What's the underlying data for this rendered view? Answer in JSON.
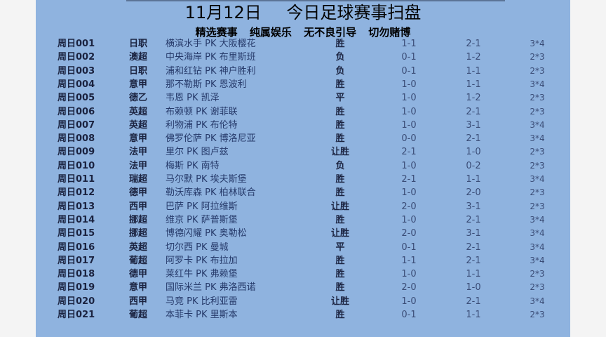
{
  "title": "11月12日 今日足球赛事扫盘",
  "slogan": "精选赛事 纯属娱乐 无不良引导 切勿赌博",
  "matches": [
    {
      "id": "周日001",
      "league": "日职",
      "match": "横滨水手 PK 大阪樱花",
      "result": "胜",
      "score1": "1-1",
      "score2": "2-1",
      "goals": "3*4"
    },
    {
      "id": "周日002",
      "league": "澳超",
      "match": "中央海岸 PK 布里斯班",
      "result": "负",
      "score1": "0-1",
      "score2": "1-2",
      "goals": "2*3"
    },
    {
      "id": "周日003",
      "league": "日职",
      "match": "浦和红钻 PK 神户胜利",
      "result": "负",
      "score1": "0-1",
      "score2": "1-1",
      "goals": "2*3"
    },
    {
      "id": "周日004",
      "league": "意甲",
      "match": "那不勒斯 PK 恩波利",
      "result": "胜",
      "score1": "1-0",
      "score2": "1-1",
      "goals": "3*4"
    },
    {
      "id": "周日005",
      "league": "德乙",
      "match": "韦恩 PK 凯泽",
      "result": "平",
      "score1": "1-0",
      "score2": "1-2",
      "goals": "2*3"
    },
    {
      "id": "周日006",
      "league": "英超",
      "match": "布赖顿 PK 谢菲联",
      "result": "胜",
      "score1": "1-0",
      "score2": "2-1",
      "goals": "2*3"
    },
    {
      "id": "周日007",
      "league": "英超",
      "match": "利物浦 PK 布伦特",
      "result": "胜",
      "score1": "1-0",
      "score2": "3-1",
      "goals": "3*4"
    },
    {
      "id": "周日008",
      "league": "意甲",
      "match": "佛罗伦萨 PK 博洛尼亚",
      "result": "胜",
      "score1": "0-0",
      "score2": "2-1",
      "goals": "3*4"
    },
    {
      "id": "周日009",
      "league": "法甲",
      "match": "里尔 PK 图卢兹",
      "result": "让胜",
      "score1": "2-1",
      "score2": "1-0",
      "goals": "2*3"
    },
    {
      "id": "周日010",
      "league": "法甲",
      "match": "梅斯 PK 南特",
      "result": "负",
      "score1": "1-0",
      "score2": "0-2",
      "goals": "2*3"
    },
    {
      "id": "周日011",
      "league": "瑞超",
      "match": "马尔默 PK 埃夫斯堡",
      "result": "胜",
      "score1": "2-1",
      "score2": "1-1",
      "goals": "3*4"
    },
    {
      "id": "周日012",
      "league": "德甲",
      "match": "勒沃库森 PK 柏林联合",
      "result": "胜",
      "score1": "1-0",
      "score2": "2-0",
      "goals": "2*3"
    },
    {
      "id": "周日013",
      "league": "西甲",
      "match": "巴萨 PK 阿拉维斯",
      "result": "让胜",
      "score1": "2-0",
      "score2": "3-1",
      "goals": "2*3"
    },
    {
      "id": "周日014",
      "league": "挪超",
      "match": "维京 PK 萨普斯堡",
      "result": "胜",
      "score1": "1-0",
      "score2": "2-1",
      "goals": "3*4"
    },
    {
      "id": "周日015",
      "league": "挪超",
      "match": "博德闪耀 PK 奥勒松",
      "result": "让胜",
      "score1": "2-0",
      "score2": "3-1",
      "goals": "3*4"
    },
    {
      "id": "周日016",
      "league": "英超",
      "match": "切尔西 PK 曼城",
      "result": "平",
      "score1": "0-1",
      "score2": "2-1",
      "goals": "3*4"
    },
    {
      "id": "周日017",
      "league": "葡超",
      "match": "阿罗卡 PK 布拉加",
      "result": "胜",
      "score1": "1-1",
      "score2": "2-1",
      "goals": "3*4"
    },
    {
      "id": "周日018",
      "league": "德甲",
      "match": "莱红牛 PK 弗赖堡",
      "result": "胜",
      "score1": "1-0",
      "score2": "1-1",
      "goals": "2*3"
    },
    {
      "id": "周日019",
      "league": "意甲",
      "match": "国际米兰 PK 弗洛西诺",
      "result": "胜",
      "score1": "2-0",
      "score2": "1-0",
      "goals": "2*3"
    },
    {
      "id": "周日020",
      "league": "西甲",
      "match": "马竞 PK 比利亚雷",
      "result": "让胜",
      "score1": "1-0",
      "score2": "2-1",
      "goals": "3*4"
    },
    {
      "id": "周日021",
      "league": "葡超",
      "match": "本菲卡 PK 里斯本",
      "result": "胜",
      "score1": "0-1",
      "score2": "1-1",
      "goals": "2*3"
    }
  ]
}
